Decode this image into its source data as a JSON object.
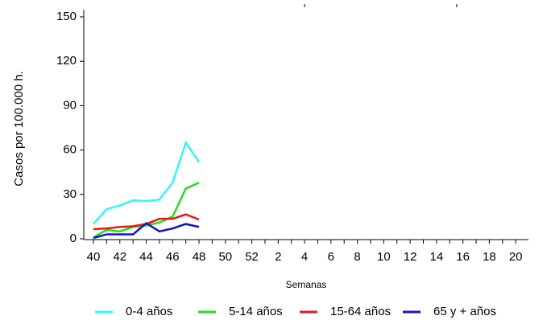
{
  "chart_data": {
    "type": "line",
    "y_label": "Casos por 100.000 h.",
    "x_label": "Semanas",
    "categories": [
      "40",
      null,
      "42",
      null,
      "44",
      null,
      "46",
      null,
      "48",
      null,
      "50",
      null,
      "52",
      null,
      "2",
      null,
      "4",
      null,
      "6",
      null,
      "8",
      null,
      "10",
      null,
      "12",
      null,
      "14",
      null,
      "16",
      null,
      "18",
      null,
      "20"
    ],
    "series": [
      {
        "name": "0-4 años",
        "color": "#33f5f5",
        "values": [
          10,
          20,
          22.5,
          26,
          25.5,
          26.5,
          38,
          65,
          52,
          null,
          null,
          null,
          null,
          null,
          null,
          null,
          null,
          null,
          null,
          null,
          null,
          null,
          null,
          null,
          null,
          null,
          null,
          null,
          null,
          null,
          null,
          null,
          null
        ]
      },
      {
        "name": "5-14 años",
        "color": "#22dd22",
        "values": [
          1,
          6,
          5,
          8,
          9,
          11,
          15,
          34,
          38,
          null,
          null,
          null,
          null,
          null,
          null,
          null,
          null,
          null,
          null,
          null,
          null,
          null,
          null,
          null,
          null,
          null,
          null,
          null,
          null,
          null,
          null,
          null,
          null
        ]
      },
      {
        "name": "15-64 años",
        "color": "#e81818",
        "values": [
          6.5,
          7,
          8,
          8.5,
          10,
          13.5,
          13.5,
          16.5,
          13,
          null,
          null,
          null,
          null,
          null,
          null,
          null,
          null,
          null,
          null,
          null,
          null,
          null,
          null,
          null,
          null,
          null,
          null,
          null,
          null,
          null,
          null,
          null,
          null
        ]
      },
      {
        "name": "65 y + años",
        "color": "#1414c8",
        "values": [
          0.5,
          3,
          3,
          3,
          10.5,
          5,
          7,
          10,
          8,
          null,
          null,
          null,
          null,
          null,
          null,
          null,
          null,
          null,
          null,
          null,
          null,
          null,
          null,
          null,
          null,
          null,
          null,
          null,
          null,
          null,
          null,
          null,
          null
        ]
      }
    ],
    "ylim": [
      0,
      150
    ],
    "yticks": [
      0,
      30,
      60,
      90,
      120,
      150
    ]
  }
}
